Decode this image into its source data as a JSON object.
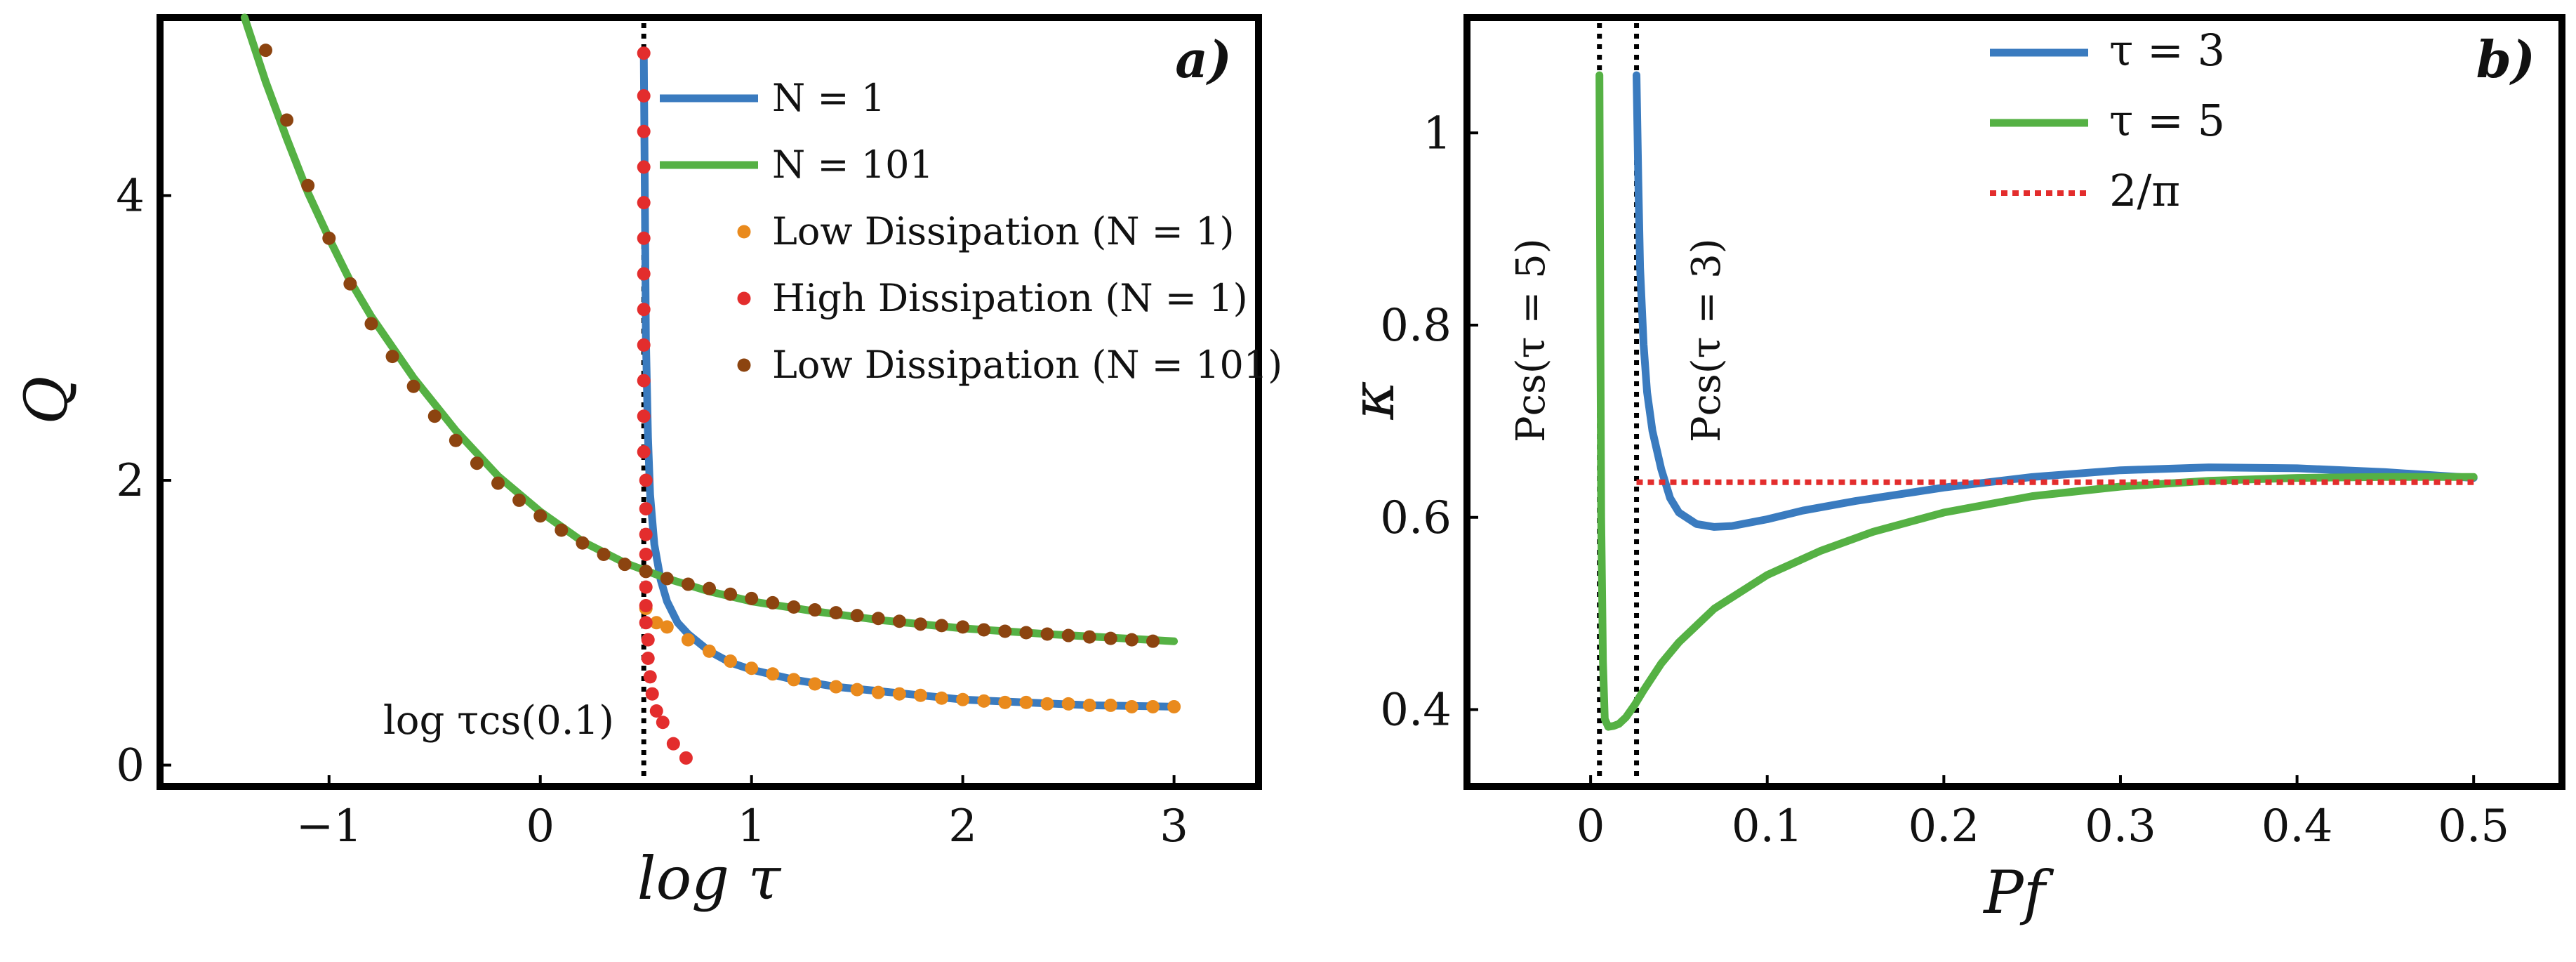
{
  "chart_data": [
    {
      "panel": "a)",
      "type": "line",
      "xlabel": "log τ",
      "ylabel": "Q",
      "xlim": [
        -1.8,
        3.4
      ],
      "ylim": [
        -0.15,
        5.25
      ],
      "xticks": [
        -1,
        0,
        1,
        2,
        3
      ],
      "xtick_labels": [
        "−1",
        "0",
        "1",
        "2",
        "3"
      ],
      "yticks": [
        0,
        2,
        4
      ],
      "ytick_labels": [
        "0",
        "2",
        "4"
      ],
      "vline": {
        "x": 0.49,
        "style": "dotted",
        "label": "log τcs(0.1)"
      },
      "series": [
        {
          "name": "N = 1",
          "kind": "line",
          "color": "#3a7bbf",
          "x": [
            0.49,
            0.5,
            0.51,
            0.52,
            0.54,
            0.57,
            0.6,
            0.65,
            0.7,
            0.8,
            0.9,
            1.0,
            1.2,
            1.4,
            1.6,
            1.8,
            2.0,
            2.3,
            2.6,
            3.0
          ],
          "y": [
            5.0,
            3.0,
            2.3,
            1.9,
            1.55,
            1.3,
            1.15,
            1.0,
            0.92,
            0.8,
            0.72,
            0.67,
            0.6,
            0.55,
            0.52,
            0.49,
            0.46,
            0.44,
            0.42,
            0.41
          ]
        },
        {
          "name": "N = 101",
          "kind": "line",
          "color": "#55b144",
          "x": [
            -1.4,
            -1.3,
            -1.2,
            -1.1,
            -1.0,
            -0.9,
            -0.8,
            -0.6,
            -0.4,
            -0.2,
            0.0,
            0.2,
            0.4,
            0.6,
            0.8,
            1.0,
            1.3,
            1.6,
            2.0,
            2.4,
            3.0
          ],
          "y": [
            5.25,
            4.8,
            4.4,
            4.02,
            3.7,
            3.4,
            3.15,
            2.72,
            2.35,
            2.03,
            1.78,
            1.57,
            1.42,
            1.31,
            1.22,
            1.15,
            1.08,
            1.02,
            0.96,
            0.92,
            0.87
          ]
        },
        {
          "name": "Low Dissipation (N = 1)",
          "kind": "scatter",
          "color": "#e98a1d",
          "x": [
            0.5,
            0.55,
            0.6,
            0.7,
            0.8,
            0.9,
            1.0,
            1.1,
            1.2,
            1.3,
            1.4,
            1.5,
            1.6,
            1.7,
            1.8,
            1.9,
            2.0,
            2.1,
            2.2,
            2.3,
            2.4,
            2.5,
            2.6,
            2.7,
            2.8,
            2.9,
            3.0
          ],
          "y": [
            1.1,
            1.0,
            0.97,
            0.88,
            0.8,
            0.73,
            0.68,
            0.64,
            0.6,
            0.57,
            0.55,
            0.53,
            0.51,
            0.5,
            0.49,
            0.47,
            0.46,
            0.45,
            0.44,
            0.44,
            0.43,
            0.43,
            0.42,
            0.42,
            0.41,
            0.41,
            0.41
          ]
        },
        {
          "name": "High Dissipation (N = 1)",
          "kind": "scatter",
          "color": "#e32d2d",
          "x": [
            0.49,
            0.49,
            0.49,
            0.49,
            0.49,
            0.49,
            0.49,
            0.49,
            0.49,
            0.49,
            0.49,
            0.49,
            0.5,
            0.5,
            0.5,
            0.5,
            0.5,
            0.5,
            0.5,
            0.5,
            0.51,
            0.51,
            0.52,
            0.53,
            0.55,
            0.58,
            0.63,
            0.69
          ],
          "y": [
            5.0,
            4.7,
            4.45,
            4.2,
            3.95,
            3.7,
            3.45,
            3.2,
            2.95,
            2.7,
            2.45,
            2.2,
            2.0,
            1.8,
            1.62,
            1.48,
            1.36,
            1.25,
            1.12,
            1.0,
            0.88,
            0.75,
            0.62,
            0.5,
            0.38,
            0.3,
            0.15,
            0.05
          ]
        },
        {
          "name": "Low Dissipation (N = 101)",
          "kind": "scatter",
          "color": "#8c4410",
          "x": [
            -1.3,
            -1.2,
            -1.1,
            -1.0,
            -0.9,
            -0.8,
            -0.7,
            -0.6,
            -0.5,
            -0.4,
            -0.3,
            -0.2,
            -0.1,
            0.0,
            0.1,
            0.2,
            0.3,
            0.4,
            0.5,
            0.6,
            0.7,
            0.8,
            0.9,
            1.0,
            1.1,
            1.2,
            1.3,
            1.4,
            1.5,
            1.6,
            1.7,
            1.8,
            1.9,
            2.0,
            2.1,
            2.2,
            2.3,
            2.4,
            2.5,
            2.6,
            2.7,
            2.8,
            2.9
          ],
          "y": [
            5.02,
            4.53,
            4.07,
            3.7,
            3.38,
            3.1,
            2.87,
            2.66,
            2.45,
            2.28,
            2.12,
            1.98,
            1.86,
            1.75,
            1.65,
            1.56,
            1.48,
            1.41,
            1.36,
            1.31,
            1.27,
            1.24,
            1.2,
            1.17,
            1.14,
            1.11,
            1.09,
            1.07,
            1.05,
            1.03,
            1.01,
            0.99,
            0.98,
            0.97,
            0.95,
            0.94,
            0.93,
            0.92,
            0.91,
            0.9,
            0.89,
            0.88,
            0.87
          ]
        }
      ]
    },
    {
      "panel": "b)",
      "type": "line",
      "xlabel": "Pf",
      "ylabel": "κ",
      "xlim": [
        -0.07,
        0.55
      ],
      "ylim": [
        0.32,
        1.12
      ],
      "xticks": [
        0,
        0.1,
        0.2,
        0.3,
        0.4,
        0.5
      ],
      "xtick_labels": [
        "0",
        "0.1",
        "0.2",
        "0.3",
        "0.4",
        "0.5"
      ],
      "yticks": [
        0.4,
        0.6,
        0.8,
        1.0
      ],
      "ytick_labels": [
        "0.4",
        "0.6",
        "0.8",
        "1"
      ],
      "vlines": [
        {
          "x": 0.005,
          "style": "dotted",
          "label": "Pcs(τ = 5)"
        },
        {
          "x": 0.026,
          "style": "dotted",
          "label": "Pcs(τ = 3)"
        }
      ],
      "series": [
        {
          "name": "τ = 3",
          "kind": "line",
          "color": "#3a7bbf",
          "x": [
            0.026,
            0.027,
            0.028,
            0.03,
            0.032,
            0.035,
            0.04,
            0.045,
            0.05,
            0.06,
            0.07,
            0.08,
            0.1,
            0.12,
            0.15,
            0.2,
            0.25,
            0.3,
            0.35,
            0.4,
            0.45,
            0.5
          ],
          "y": [
            1.06,
            0.95,
            0.86,
            0.78,
            0.73,
            0.69,
            0.65,
            0.62,
            0.605,
            0.593,
            0.59,
            0.591,
            0.598,
            0.607,
            0.617,
            0.631,
            0.642,
            0.649,
            0.652,
            0.651,
            0.647,
            0.641
          ]
        },
        {
          "name": "τ = 5",
          "kind": "line",
          "color": "#55b144",
          "x": [
            0.005,
            0.0055,
            0.006,
            0.007,
            0.008,
            0.01,
            0.013,
            0.016,
            0.02,
            0.025,
            0.03,
            0.04,
            0.05,
            0.07,
            0.1,
            0.13,
            0.16,
            0.2,
            0.25,
            0.3,
            0.35,
            0.4,
            0.45,
            0.5
          ],
          "y": [
            1.06,
            0.8,
            0.6,
            0.45,
            0.39,
            0.382,
            0.383,
            0.385,
            0.392,
            0.405,
            0.42,
            0.448,
            0.47,
            0.505,
            0.54,
            0.565,
            0.585,
            0.605,
            0.622,
            0.632,
            0.638,
            0.641,
            0.642,
            0.642
          ]
        },
        {
          "name": "2/π",
          "kind": "hline",
          "color": "#e32d2d",
          "x": [
            0.026,
            0.5
          ],
          "y": [
            0.6366,
            0.6366
          ]
        }
      ]
    }
  ]
}
